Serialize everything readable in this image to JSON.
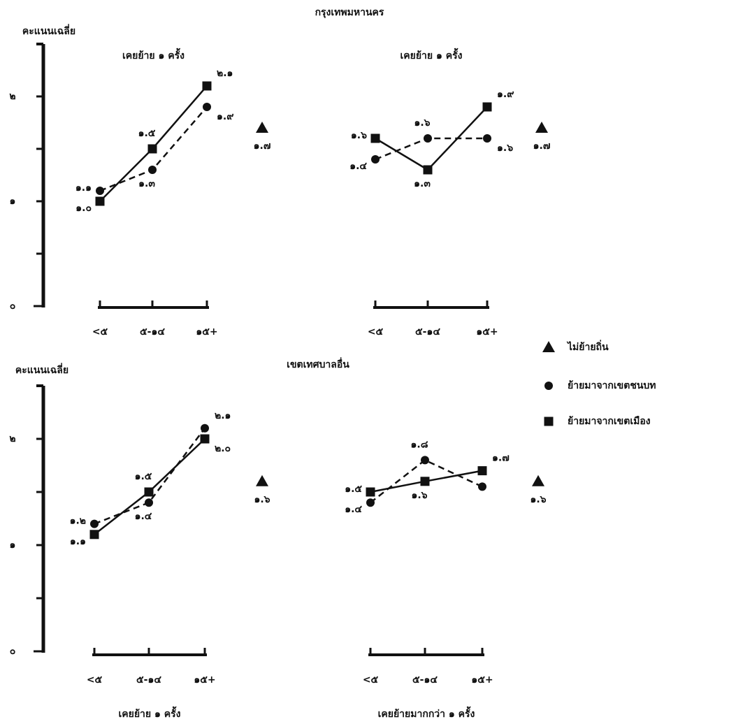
{
  "chart_data": [
    {
      "type": "line",
      "title": "กรุงเทพมหานคร",
      "y_label": "คะแนนเฉลี่ย",
      "ylim": [
        0,
        2.5
      ],
      "yticks": [
        {
          "value": 0,
          "label": "๐"
        },
        {
          "value": 1,
          "label": "๑"
        },
        {
          "value": 2,
          "label": "๒"
        }
      ],
      "minor_yticks": [
        0.5,
        1.5
      ],
      "panels": [
        {
          "subtitle": "เคยย้าย ๑ ครั้ง",
          "categories": [
            "<๕",
            "๕-๑๔",
            "๑๕+"
          ],
          "series": [
            {
              "marker": "circle",
              "line": "dashed",
              "values": [
                1.1,
                1.3,
                1.9
              ],
              "value_labels": [
                "๑.๑",
                "๑.๓",
                "๑.๙"
              ]
            },
            {
              "marker": "square",
              "line": "solid",
              "values": [
                1.0,
                1.5,
                2.1
              ],
              "value_labels": [
                "๑.๐",
                "๑.๕",
                "๒.๑"
              ]
            }
          ],
          "not_moved": {
            "marker": "triangle",
            "value": 1.7,
            "value_label": "๑.๗"
          }
        },
        {
          "subtitle": "เคยย้าย ๑ ครั้ง",
          "categories": [
            "<๕",
            "๕-๑๔",
            "๑๕+"
          ],
          "series": [
            {
              "marker": "circle",
              "line": "dashed",
              "values": [
                1.4,
                1.6,
                1.6
              ],
              "value_labels": [
                "๑.๔",
                "๑.๖",
                "๑.๖"
              ]
            },
            {
              "marker": "square",
              "line": "solid",
              "values": [
                1.6,
                1.3,
                1.9
              ],
              "value_labels": [
                "๑.๖",
                "๑.๓",
                "๑.๙"
              ]
            }
          ],
          "not_moved": {
            "marker": "triangle",
            "value": 1.7,
            "value_label": "๑.๗"
          }
        }
      ]
    },
    {
      "type": "line",
      "title": "เขตเทศบาลอื่น",
      "y_label": "คะแนนเฉลี่ย",
      "ylim": [
        0,
        2.5
      ],
      "yticks": [
        {
          "value": 0,
          "label": "๐"
        },
        {
          "value": 1,
          "label": "๑"
        },
        {
          "value": 2,
          "label": "๒"
        }
      ],
      "minor_yticks": [
        0.5,
        1.5
      ],
      "panels": [
        {
          "subtitle": "เคยย้าย ๑ ครั้ง",
          "categories": [
            "<๕",
            "๕-๑๔",
            "๑๕+"
          ],
          "series": [
            {
              "marker": "circle",
              "line": "dashed",
              "values": [
                1.2,
                1.4,
                2.1
              ],
              "value_labels": [
                "๑.๒",
                "๑.๔",
                "๒.๑"
              ]
            },
            {
              "marker": "square",
              "line": "solid",
              "values": [
                1.1,
                1.5,
                2.0
              ],
              "value_labels": [
                "๑.๑",
                "๑.๕",
                "๒.๐"
              ]
            }
          ],
          "not_moved": {
            "marker": "triangle",
            "value": 1.6,
            "value_label": "๑.๖"
          }
        },
        {
          "subtitle": "เคยย้ายมากกว่า ๑ ครั้ง",
          "categories": [
            "<๕",
            "๕-๑๔",
            "๑๕+"
          ],
          "series": [
            {
              "marker": "circle",
              "line": "dashed",
              "values": [
                1.4,
                1.8,
                1.55
              ],
              "value_labels": [
                "๑.๔",
                "๑.๘",
                null
              ]
            },
            {
              "marker": "square",
              "line": "solid",
              "values": [
                1.5,
                1.6,
                1.7
              ],
              "value_labels": [
                "๑.๕",
                "๑.๖",
                "๑.๗"
              ]
            }
          ],
          "not_moved": {
            "marker": "triangle",
            "value": 1.6,
            "value_label": "๑.๖"
          }
        }
      ]
    }
  ],
  "legend": [
    {
      "marker": "triangle",
      "name": "ไม่ย้ายถิ่น"
    },
    {
      "marker": "circle",
      "name": "ย้ายมาจากเขตชนบท"
    },
    {
      "marker": "square",
      "name": "ย้ายมาจากเขตเมือง"
    }
  ]
}
